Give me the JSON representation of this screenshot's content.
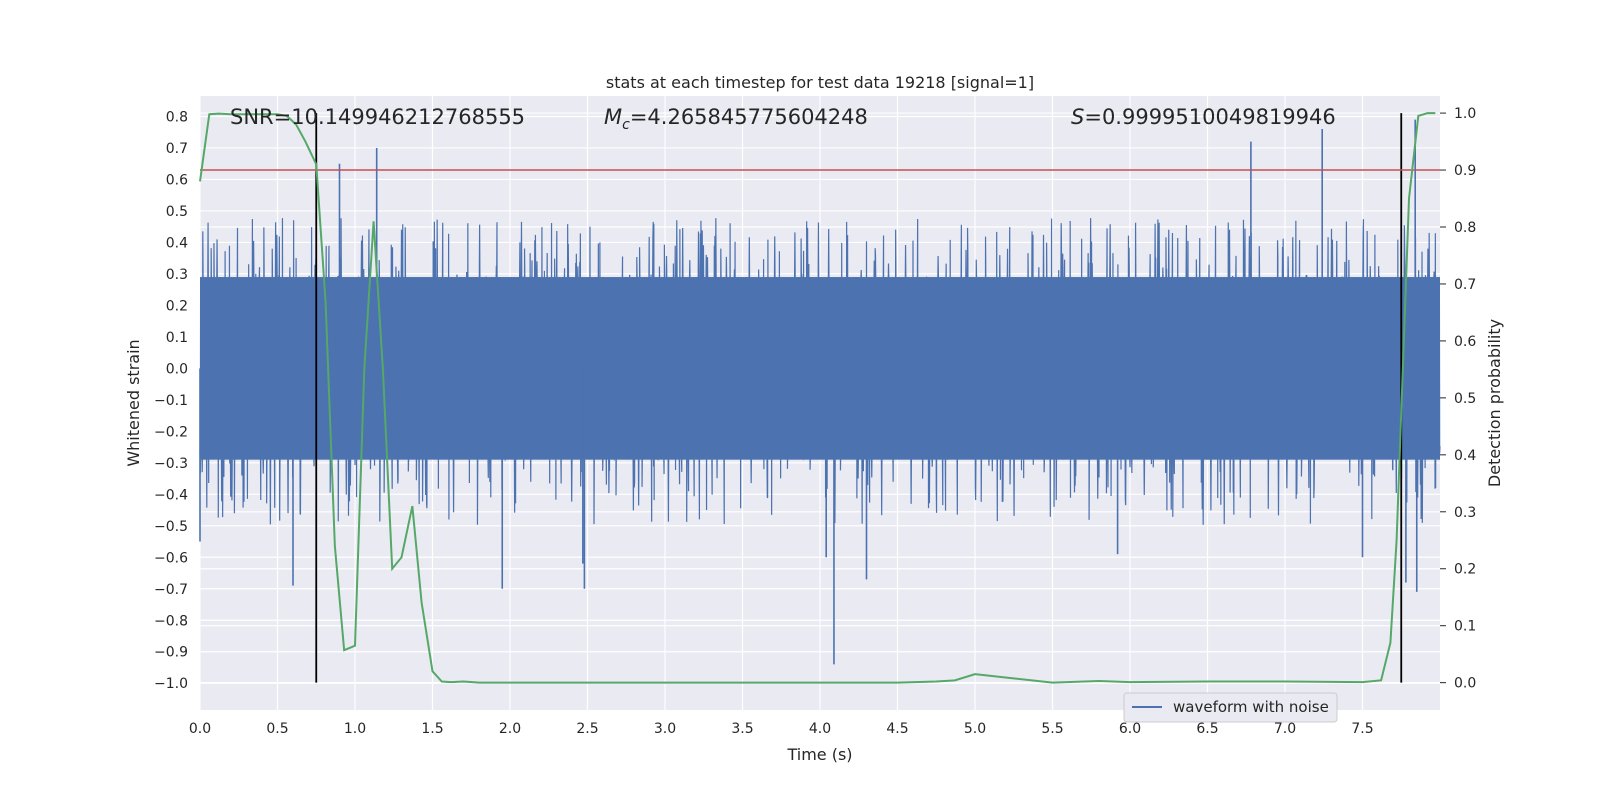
{
  "chart_data": {
    "type": "line",
    "title": "stats at each timestep for test data 19218 [signal=1]",
    "xlabel": "Time (s)",
    "ylabel": "Whitened strain",
    "y2label": "Detection probability",
    "xlim": [
      0.0,
      8.0
    ],
    "ylim": [
      -1.085,
      0.865
    ],
    "y2lim": [
      -0.048,
      1.03
    ],
    "grid": true,
    "xticks": [
      "0.0",
      "0.5",
      "1.0",
      "1.5",
      "2.0",
      "2.5",
      "3.0",
      "3.5",
      "4.0",
      "4.5",
      "5.0",
      "5.5",
      "6.0",
      "6.5",
      "7.0",
      "7.5"
    ],
    "yticks": [
      "0.8",
      "0.7",
      "0.6",
      "0.5",
      "0.4",
      "0.3",
      "0.2",
      "0.1",
      "0.0",
      "−0.1",
      "−0.2",
      "−0.3",
      "−0.4",
      "−0.5",
      "−0.6",
      "−0.7",
      "−0.8",
      "−0.9",
      "−1.0"
    ],
    "y2ticks": [
      "0.0",
      "0.1",
      "0.2",
      "0.3",
      "0.4",
      "0.5",
      "0.6",
      "0.7",
      "0.8",
      "0.9",
      "1.0"
    ],
    "annotations": {
      "snr": "SNR=10.149946212768555",
      "mc_symbol": "M",
      "mc_sub": "c",
      "mc_value": "=4.265845775604248",
      "s_symbol": "S",
      "s_value": "=0.9999510049819946"
    },
    "legend": {
      "label": "waveform with noise",
      "placement": "lower right"
    },
    "colors": {
      "waveform": "#4c72b0",
      "probability": "#55a868",
      "threshold": "#c44e52",
      "markers": "#000000",
      "background": "#eaeaf2",
      "grid": "#ffffff"
    },
    "threshold": {
      "y2": 0.9
    },
    "vertical_markers": [
      0.75,
      7.75
    ],
    "waveform": {
      "name": "waveform with noise",
      "time_range": [
        0.0,
        8.0
      ],
      "core_band": [
        -0.29,
        0.29
      ],
      "typical_peak_range": [
        -0.5,
        0.48
      ],
      "notable_spikes": [
        {
          "x": 0.0,
          "y": -0.55
        },
        {
          "x": 0.6,
          "y": -0.69
        },
        {
          "x": 0.9,
          "y": 0.65
        },
        {
          "x": 1.14,
          "y": 0.7
        },
        {
          "x": 1.95,
          "y": -0.7
        },
        {
          "x": 2.48,
          "y": -0.7
        },
        {
          "x": 2.47,
          "y": -0.62
        },
        {
          "x": 4.09,
          "y": -0.94
        },
        {
          "x": 4.04,
          "y": -0.6
        },
        {
          "x": 4.3,
          "y": -0.67
        },
        {
          "x": 5.92,
          "y": -0.59
        },
        {
          "x": 6.78,
          "y": 0.72
        },
        {
          "x": 7.24,
          "y": 0.76
        },
        {
          "x": 7.5,
          "y": -0.6
        },
        {
          "x": 7.78,
          "y": -0.68
        },
        {
          "x": 7.84,
          "y": 0.79
        },
        {
          "x": 7.85,
          "y": -0.71
        }
      ]
    },
    "series": [
      {
        "name": "",
        "axis": "right",
        "x": [
          0.0,
          0.06,
          0.12,
          0.2,
          0.3,
          0.4,
          0.5,
          0.56,
          0.62,
          0.68,
          0.75,
          0.81,
          0.87,
          0.93,
          1.0,
          1.06,
          1.12,
          1.18,
          1.24,
          1.3,
          1.37,
          1.43,
          1.5,
          1.56,
          1.62,
          1.7,
          1.8,
          2.0,
          2.5,
          3.0,
          3.5,
          4.0,
          4.5,
          4.75,
          4.87,
          5.0,
          5.5,
          5.8,
          6.0,
          6.5,
          7.0,
          7.5,
          7.62,
          7.68,
          7.72,
          7.76,
          7.8,
          7.86,
          7.92,
          7.97
        ],
        "y": [
          0.88,
          0.998,
          0.999,
          0.998,
          0.998,
          0.998,
          0.998,
          0.995,
          0.98,
          0.95,
          0.91,
          0.67,
          0.24,
          0.057,
          0.065,
          0.55,
          0.81,
          0.55,
          0.2,
          0.22,
          0.31,
          0.14,
          0.02,
          0.002,
          0.001,
          0.002,
          0.0,
          0.0,
          0.0,
          0.0,
          0.0,
          0.0,
          0.0,
          0.002,
          0.004,
          0.015,
          0.0,
          0.003,
          0.001,
          0.002,
          0.002,
          0.001,
          0.004,
          0.07,
          0.25,
          0.55,
          0.85,
          0.995,
          1.0,
          1.0
        ]
      }
    ]
  }
}
